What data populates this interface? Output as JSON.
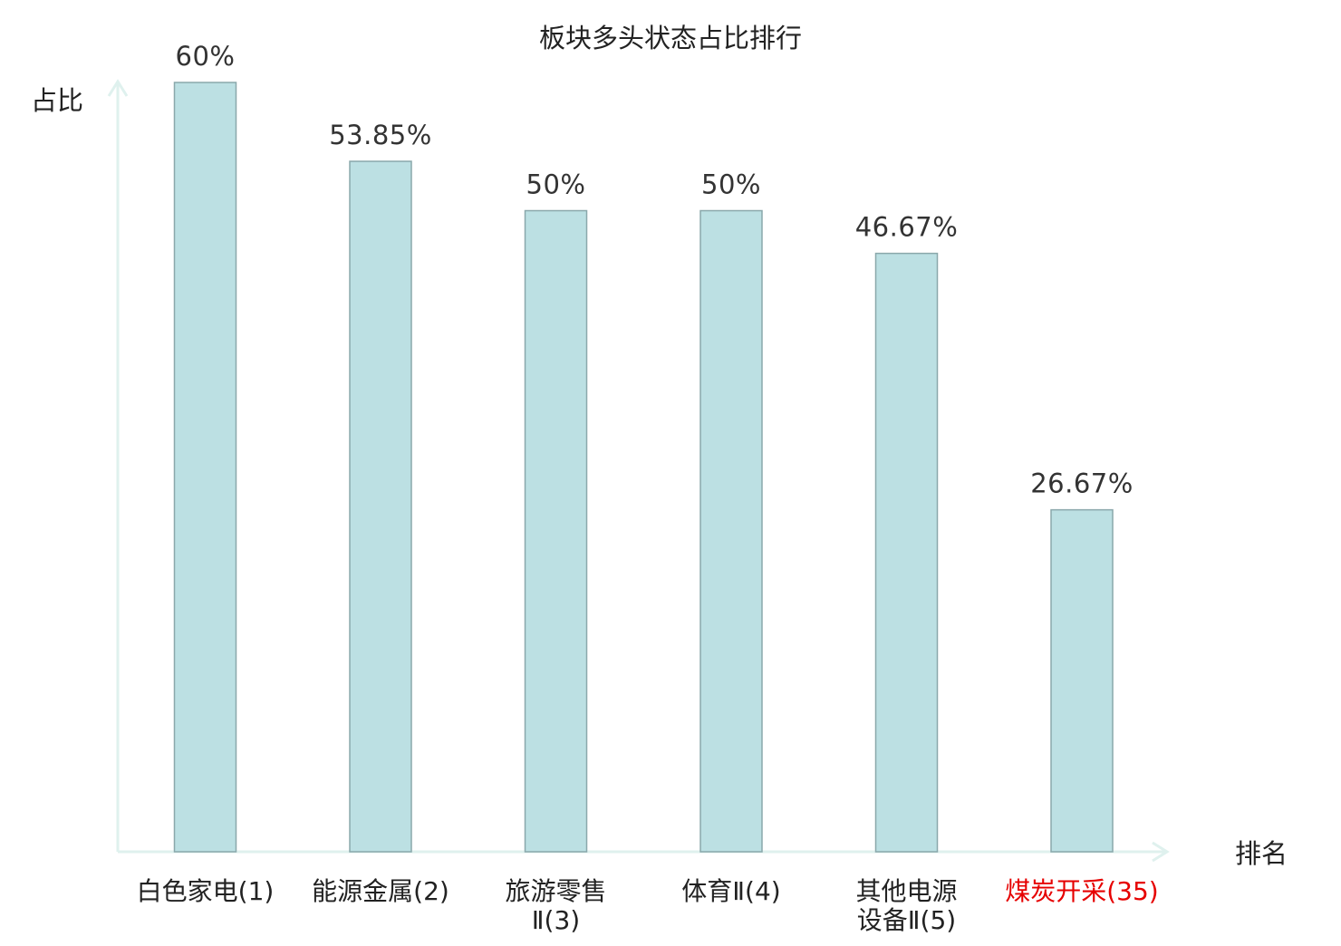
{
  "chart_data": {
    "type": "bar",
    "title": "板块多头状态占比排行",
    "ylabel": "占比",
    "xlabel": "排名",
    "categories": [
      [
        "白色家电(1)"
      ],
      [
        "能源金属(2)"
      ],
      [
        "旅游零售",
        "Ⅱ(3)"
      ],
      [
        "体育Ⅱ(4)"
      ],
      [
        "其他电源",
        "设备Ⅱ(5)"
      ],
      [
        "煤炭开采(35)"
      ]
    ],
    "values": [
      60,
      53.85,
      50,
      50,
      46.67,
      26.67
    ],
    "value_labels": [
      "60%",
      "53.85%",
      "50%",
      "50%",
      "46.67%",
      "26.67%"
    ],
    "highlighted_index": 5,
    "ylim": [
      0,
      60
    ],
    "grid": false,
    "colors": {
      "bar_fill": "#bce0e3",
      "bar_stroke": "#8aa8ab",
      "axis": "#dff1ee",
      "text": "#222222",
      "value_label": "#333333",
      "highlight": "#e60000"
    }
  }
}
